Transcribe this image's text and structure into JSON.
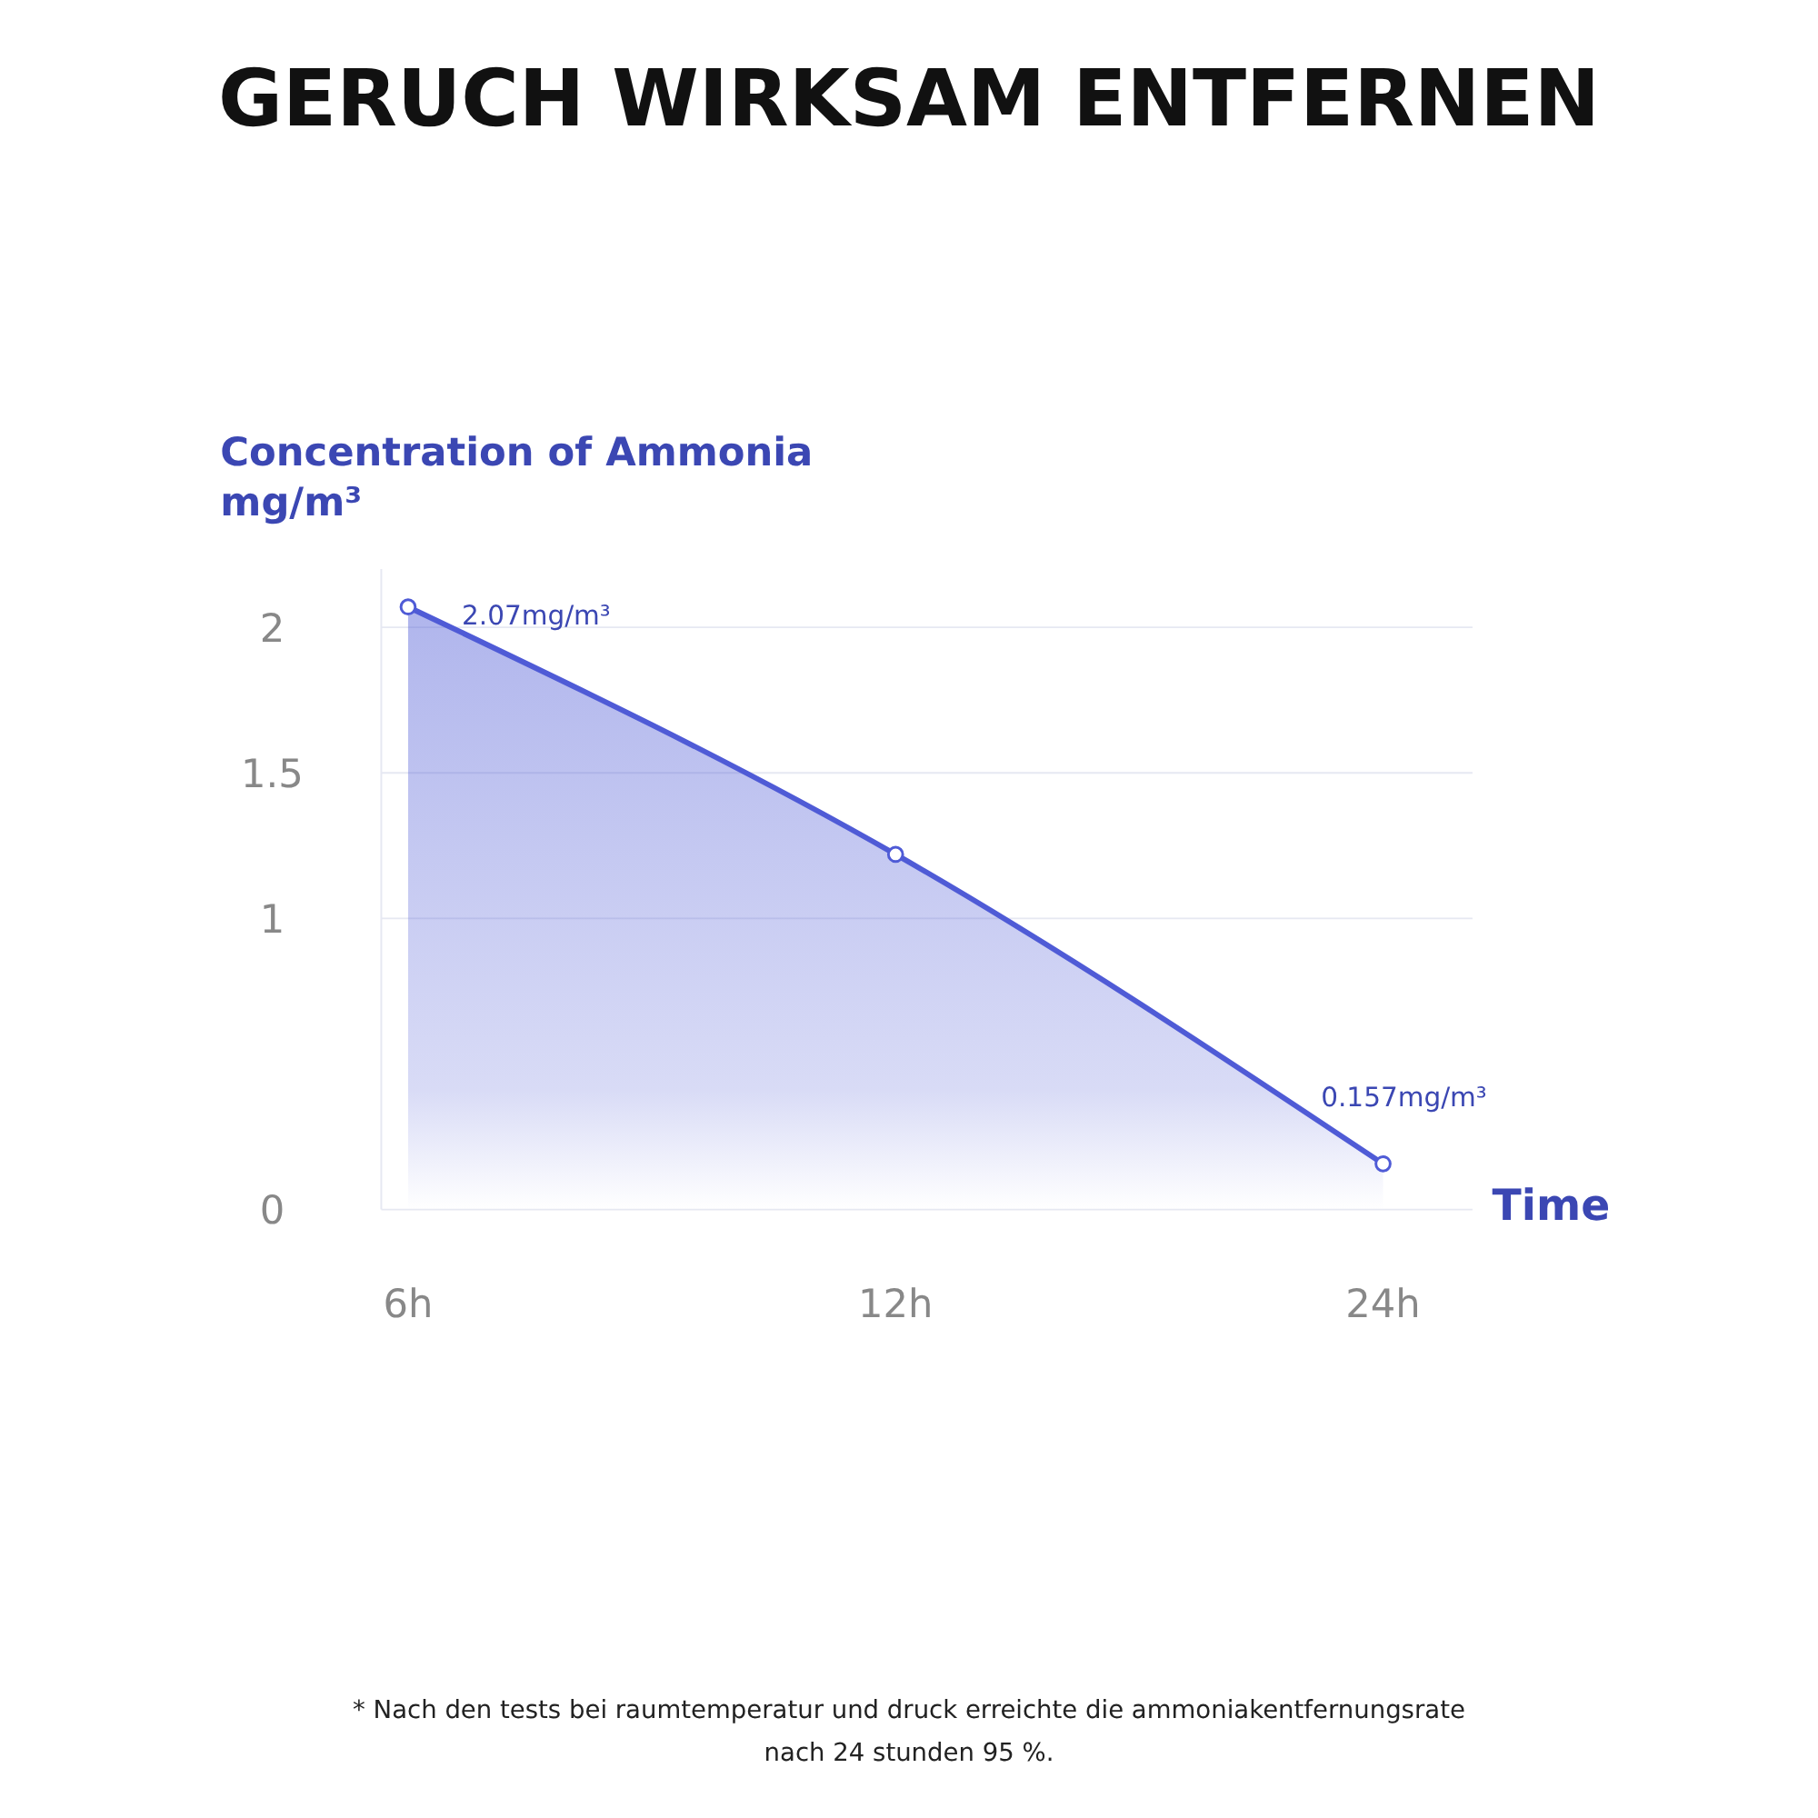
{
  "chart_data": {
    "type": "area",
    "title": "GERUCH WIRKSAM ENTFERNEN",
    "ylabel": "Concentration of Ammonia\nmg/m³",
    "xlabel": "Time",
    "categories": [
      "6h",
      "12h",
      "24h"
    ],
    "series": [
      {
        "color": "#4f5bd6",
        "values": [
          2.07,
          1.22,
          0.157
        ],
        "value_labels": [
          "2.07mg/m³",
          null,
          "0.157mg/m³"
        ]
      }
    ],
    "ylim": [
      0,
      2.2
    ],
    "yticks": [
      0,
      1,
      1.5,
      2
    ],
    "grid": "y",
    "marker": "circle",
    "annotations": [
      "* Nach den tests bei raumtemperatur und druck erreichte die ammoniakentfernungsrate\nnach 24 stunden 95 %."
    ]
  }
}
